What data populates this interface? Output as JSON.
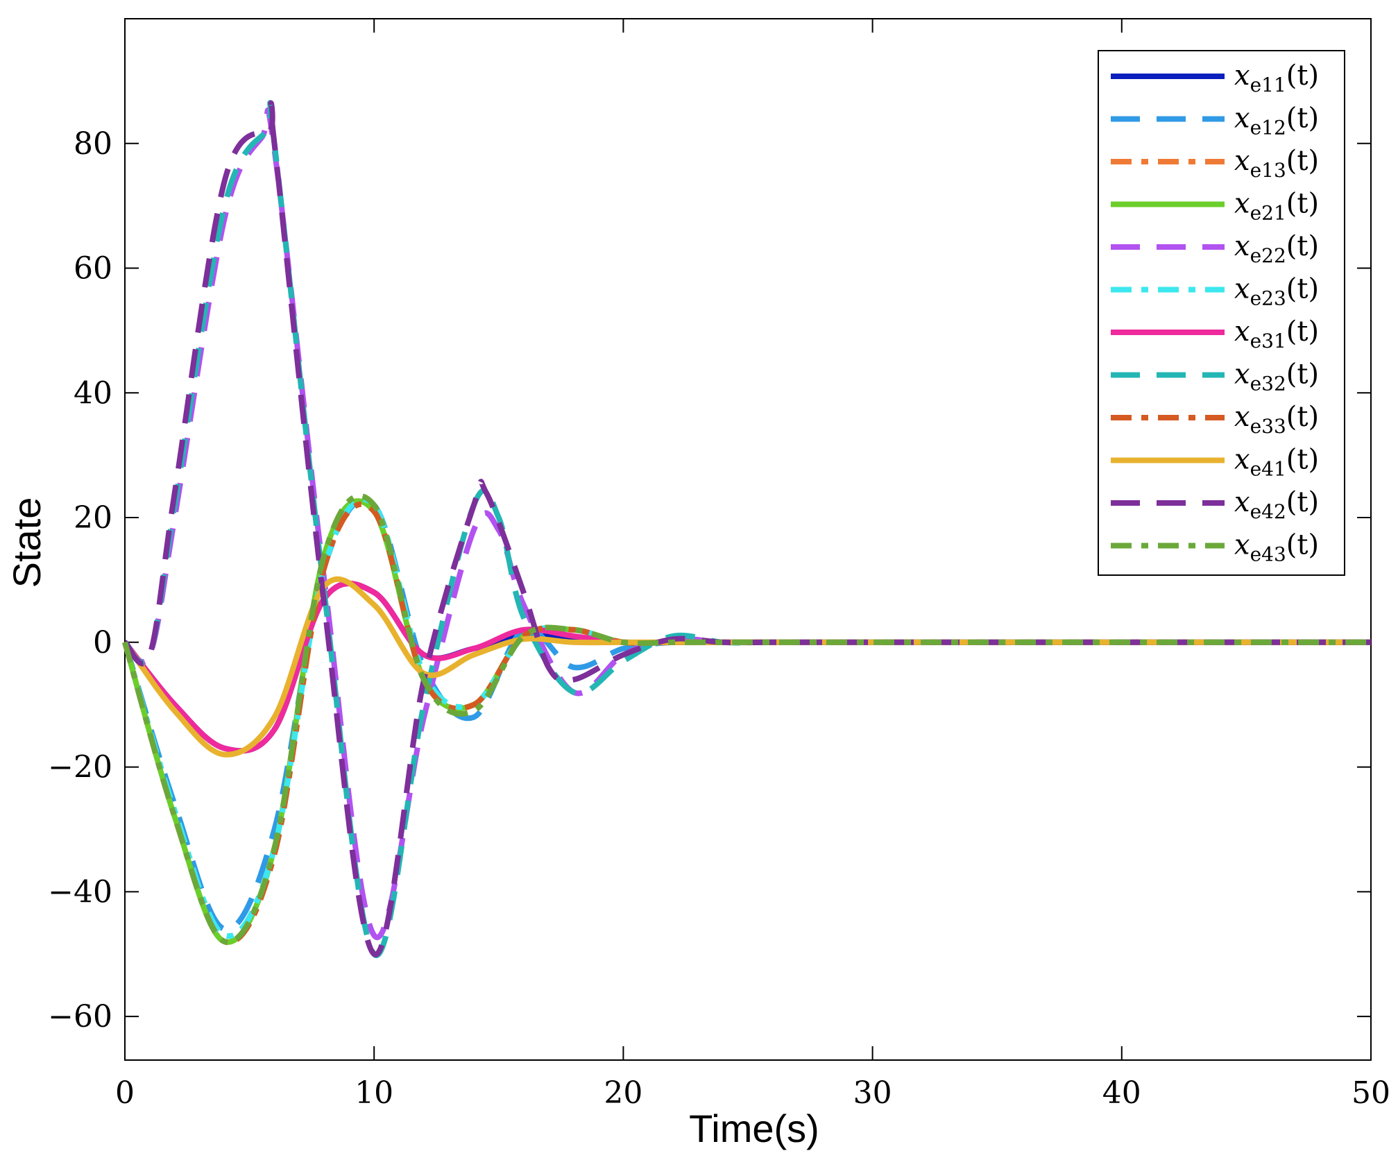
{
  "chart_data": {
    "type": "line",
    "title": "",
    "xlabel": "Time(s)",
    "ylabel": "State",
    "xlim": [
      0,
      50
    ],
    "ylim": [
      -67,
      100
    ],
    "grid": false,
    "legend_position": "top-right",
    "xticks": [
      "0",
      "10",
      "20",
      "30",
      "40",
      "50"
    ],
    "yticks": [
      "80",
      "60",
      "40",
      "20",
      "0",
      "−20",
      "−40",
      "−60"
    ],
    "series": [
      {
        "name": "x_{e11}(t)",
        "legend_main": "x",
        "legend_sub": "e11",
        "legend_tail": "(t)",
        "color": "#0a1fbe",
        "style": "solid",
        "x": [
          0,
          2,
          4,
          6,
          8,
          10,
          12,
          14,
          16,
          18,
          20,
          22,
          24,
          26,
          30,
          35,
          40,
          45,
          50
        ],
        "y": [
          0,
          -10,
          -17,
          -14,
          7,
          8,
          -2,
          -1,
          1,
          0.5,
          0,
          0,
          0,
          0,
          0,
          0,
          0,
          0,
          0
        ]
      },
      {
        "name": "x_{e12}(t)",
        "legend_main": "x",
        "legend_sub": "e12",
        "legend_tail": "(t)",
        "color": "#2f9ae6",
        "style": "dash",
        "x": [
          0,
          2,
          4,
          6,
          8,
          10,
          12,
          14,
          16,
          18,
          20,
          22,
          24,
          26,
          30,
          35,
          40,
          45,
          50
        ],
        "y": [
          0,
          -26,
          -46,
          -30,
          12,
          22,
          -4,
          -12,
          2,
          -4,
          -1,
          0,
          0,
          0,
          0,
          0,
          0,
          0,
          0
        ]
      },
      {
        "name": "x_{e13}(t)",
        "legend_main": "x",
        "legend_sub": "e13",
        "legend_tail": "(t)",
        "color": "#ef7a35",
        "style": "dashdot",
        "x": [
          0,
          2,
          4,
          6,
          8,
          10,
          12,
          14,
          16,
          18,
          20,
          22,
          24,
          26,
          30,
          35,
          40,
          45,
          50
        ],
        "y": [
          0,
          -28,
          -48,
          -34,
          12,
          21,
          -6,
          -10,
          1,
          2,
          0,
          0,
          0,
          0,
          0,
          0,
          0,
          0,
          0
        ]
      },
      {
        "name": "x_{e21}(t)",
        "legend_main": "x",
        "legend_sub": "e21",
        "legend_tail": "(t)",
        "color": "#6bce2a",
        "style": "solid",
        "x": [
          0,
          2,
          4,
          6,
          8,
          10,
          12,
          14,
          16,
          18,
          20,
          22,
          24,
          26,
          30,
          35,
          40,
          45,
          50
        ],
        "y": [
          0,
          -28,
          -48,
          -33,
          14,
          21,
          -6,
          -10,
          1,
          2,
          0,
          0,
          0,
          0,
          0,
          0,
          0,
          0,
          0
        ]
      },
      {
        "name": "x_{e22}(t)",
        "legend_main": "x",
        "legend_sub": "e22",
        "legend_tail": "(t)",
        "color": "#b252f0",
        "style": "dash",
        "x": [
          0,
          1,
          2,
          4,
          5.5,
          6,
          8,
          10,
          12,
          14,
          15,
          16,
          18,
          20,
          22,
          24,
          26,
          30,
          35,
          40,
          45,
          50
        ],
        "y": [
          0,
          -2,
          20,
          68,
          81,
          79,
          10,
          -47,
          -12,
          18,
          18,
          6,
          -8,
          -2,
          0.5,
          0,
          0,
          0,
          0,
          0,
          0,
          0
        ]
      },
      {
        "name": "x_{e23}(t)",
        "legend_main": "x",
        "legend_sub": "e23",
        "legend_tail": "(t)",
        "color": "#3ce8ee",
        "style": "dashdot",
        "x": [
          0,
          2,
          4,
          6,
          8,
          10,
          12,
          14,
          16,
          18,
          20,
          22,
          24,
          26,
          30,
          35,
          40,
          45,
          50
        ],
        "y": [
          0,
          -27,
          -47,
          -33,
          12,
          22,
          -5,
          -10,
          1,
          2,
          0,
          0,
          0,
          0,
          0,
          0,
          0,
          0,
          0
        ]
      },
      {
        "name": "x_{e31}(t)",
        "legend_main": "x",
        "legend_sub": "e31",
        "legend_tail": "(t)",
        "color": "#ee2a9c",
        "style": "solid",
        "x": [
          0,
          2,
          4,
          6,
          8,
          10,
          12,
          14,
          16,
          18,
          20,
          22,
          24,
          26,
          30,
          35,
          40,
          45,
          50
        ],
        "y": [
          0,
          -10,
          -17,
          -14,
          7,
          8,
          -2,
          -1,
          2,
          1,
          0,
          0,
          0,
          0,
          0,
          0,
          0,
          0,
          0
        ]
      },
      {
        "name": "x_{e32}(t)",
        "legend_main": "x",
        "legend_sub": "e32",
        "legend_tail": "(t)",
        "color": "#23b6b4",
        "style": "dash",
        "x": [
          0,
          1,
          2,
          4,
          5.7,
          6,
          8,
          10,
          12,
          14,
          15,
          16,
          18,
          20,
          22,
          24,
          26,
          30,
          35,
          40,
          45,
          50
        ],
        "y": [
          0,
          -2,
          22,
          70,
          82,
          80,
          8,
          -50,
          -10,
          22,
          20,
          4,
          -8,
          -3,
          1,
          0,
          0,
          0,
          0,
          0,
          0,
          0
        ]
      },
      {
        "name": "x_{e33}(t)",
        "legend_main": "x",
        "legend_sub": "e33",
        "legend_tail": "(t)",
        "color": "#d45a22",
        "style": "dashdot",
        "x": [
          0,
          2,
          4,
          6,
          8,
          10,
          12,
          14,
          16,
          18,
          20,
          22,
          24,
          26,
          30,
          35,
          40,
          45,
          50
        ],
        "y": [
          0,
          -28,
          -48,
          -34,
          12,
          21,
          -6,
          -10,
          1,
          2,
          0,
          0,
          0,
          0,
          0,
          0,
          0,
          0,
          0
        ]
      },
      {
        "name": "x_{e41}(t)",
        "legend_main": "x",
        "legend_sub": "e41",
        "legend_tail": "(t)",
        "color": "#e8b22e",
        "style": "solid",
        "x": [
          0,
          2,
          4,
          6,
          8,
          10,
          12,
          14,
          16,
          18,
          20,
          22,
          24,
          26,
          30,
          35,
          40,
          45,
          50
        ],
        "y": [
          0,
          -11,
          -18,
          -12,
          9,
          6,
          -5,
          -2,
          0.5,
          0,
          0,
          0,
          0,
          0,
          0,
          0,
          0,
          0,
          0
        ]
      },
      {
        "name": "x_{e42}(t)",
        "legend_main": "x",
        "legend_sub": "e42",
        "legend_tail": "(t)",
        "color": "#7d2f9a",
        "style": "dash",
        "x": [
          0,
          1,
          2,
          4,
          5.8,
          6,
          8,
          10,
          12,
          14,
          14.5,
          16,
          17,
          18,
          20,
          22,
          24,
          26,
          30,
          35,
          40,
          45,
          50
        ],
        "y": [
          0,
          -2,
          24,
          74,
          82,
          80,
          6,
          -50,
          -6,
          22,
          24,
          8,
          -4,
          -6,
          -2,
          0.5,
          0,
          0,
          0,
          0,
          0,
          0,
          0
        ]
      },
      {
        "name": "x_{e43}(t)",
        "legend_main": "x",
        "legend_sub": "e43",
        "legend_tail": "(t)",
        "color": "#6ba83a",
        "style": "dashdot",
        "x": [
          0,
          2,
          4,
          6,
          8,
          10,
          12,
          14,
          16,
          18,
          20,
          22,
          24,
          26,
          30,
          35,
          40,
          45,
          50
        ],
        "y": [
          0,
          -28,
          -48,
          -33,
          14,
          22,
          -6,
          -11,
          1,
          2,
          0,
          0,
          0,
          0,
          0,
          0,
          0,
          0,
          0
        ]
      }
    ]
  }
}
